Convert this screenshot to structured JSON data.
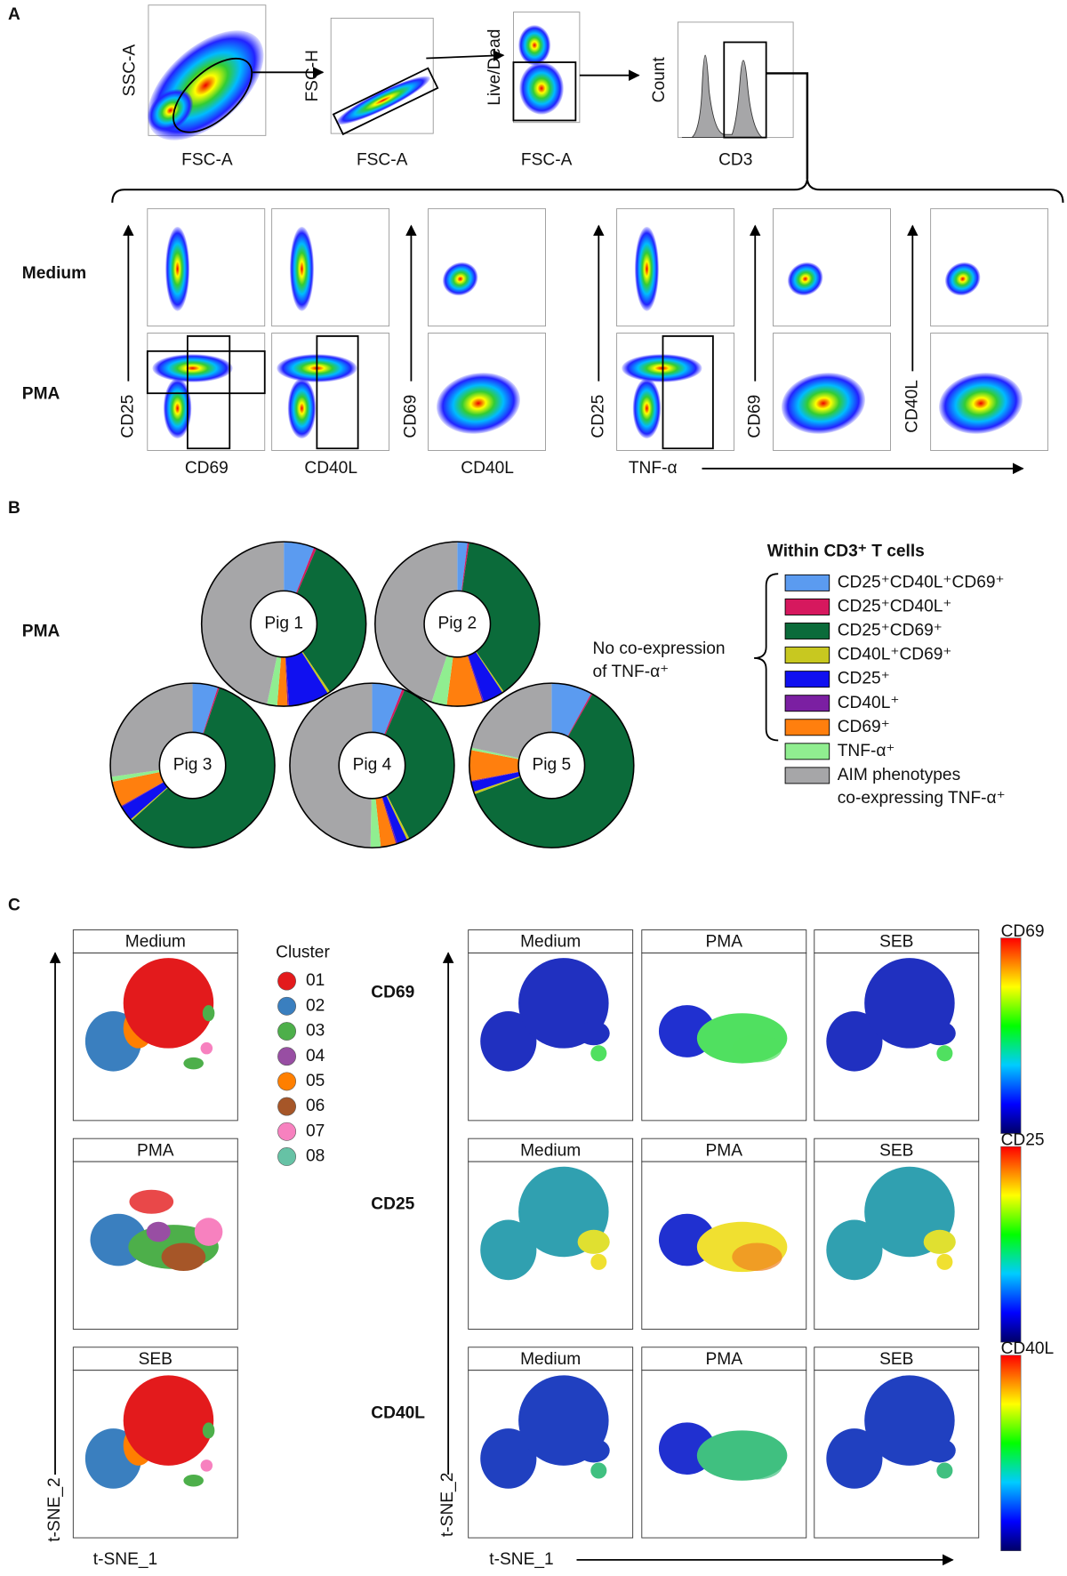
{
  "panel_labels": [
    "A",
    "B",
    "C"
  ],
  "gating": {
    "plots": [
      {
        "y_label": "SSC-A",
        "x_label": "FSC-A"
      },
      {
        "y_label": "FSC-H",
        "x_label": "FSC-A"
      },
      {
        "y_label": "Live/Dead",
        "x_label": "FSC-A"
      },
      {
        "y_label": "Count",
        "x_label": "CD3"
      }
    ]
  },
  "aim": {
    "row_labels": [
      "Medium",
      "PMA"
    ],
    "y_labels": [
      "CD25",
      "CD69",
      "CD25",
      "CD69",
      "CD40L"
    ],
    "x_labels": [
      "CD69",
      "CD40L",
      "CD40L",
      "TNF-α"
    ]
  },
  "pie_section": {
    "row_label": "PMA",
    "note": [
      "No co-expression",
      "of TNF-α⁺"
    ]
  },
  "legend": {
    "title": "Within CD3⁺ T cells",
    "items": [
      {
        "label": "CD25⁺CD40L⁺CD69⁺",
        "color": "#5b9bf0"
      },
      {
        "label": "CD25⁺CD40L⁺",
        "color": "#d6185e"
      },
      {
        "label": "CD25⁺CD69⁺",
        "color": "#0b6b3a"
      },
      {
        "label": "CD40L⁺CD69⁺",
        "color": "#c8c820"
      },
      {
        "label": "CD25⁺",
        "color": "#1010f0"
      },
      {
        "label": "CD40L⁺",
        "color": "#7b1fa2"
      },
      {
        "label": "CD69⁺",
        "color": "#ff7f0e"
      },
      {
        "label": "TNF-α⁺",
        "color": "#90ee90"
      },
      {
        "label": "AIM phenotypes",
        "label2": "co-expressing TNF-α⁺",
        "color": "#a6a6a8"
      }
    ]
  },
  "chart_data": [
    {
      "type": "pie",
      "title": "Pig 1",
      "values": [
        6,
        0.5,
        34,
        0.5,
        8,
        0.3,
        2,
        2,
        46.7
      ]
    },
    {
      "type": "pie",
      "title": "Pig 2",
      "values": [
        2,
        0.3,
        38,
        0.3,
        4,
        0.3,
        7,
        3,
        44.8
      ]
    },
    {
      "type": "pie",
      "title": "Pig 3",
      "values": [
        5,
        0.3,
        58,
        0.3,
        3,
        0.2,
        5,
        1,
        27.2
      ]
    },
    {
      "type": "pie",
      "title": "Pig 4",
      "values": [
        6,
        0.5,
        36,
        0.5,
        2,
        0.3,
        3,
        2,
        49.7
      ]
    },
    {
      "type": "pie",
      "title": "Pig 5",
      "values": [
        8,
        0.3,
        61,
        0.5,
        2,
        0.2,
        6,
        0.5,
        21.5
      ]
    }
  ],
  "tsne": {
    "legend_title": "Cluster",
    "clusters": [
      {
        "label": "01",
        "color": "#e31a1c"
      },
      {
        "label": "02",
        "color": "#3a7fbf"
      },
      {
        "label": "03",
        "color": "#4daf4a"
      },
      {
        "label": "04",
        "color": "#984ea3"
      },
      {
        "label": "05",
        "color": "#ff7f00"
      },
      {
        "label": "06",
        "color": "#a65628"
      },
      {
        "label": "07",
        "color": "#f781bf"
      },
      {
        "label": "08",
        "color": "#66c2a5"
      }
    ],
    "facet_labels": [
      "Medium",
      "PMA",
      "SEB"
    ],
    "marker_labels": [
      "CD69",
      "CD25",
      "CD40L"
    ],
    "x_label": "t-SNE_1",
    "y_label": "t-SNE_2"
  }
}
